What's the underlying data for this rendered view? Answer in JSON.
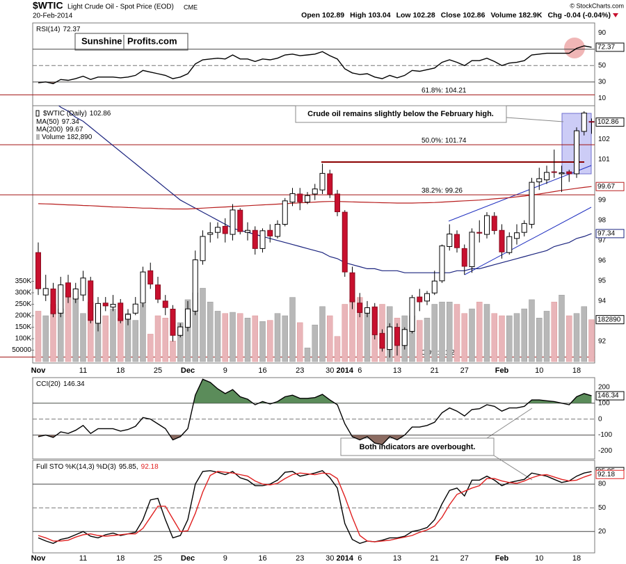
{
  "header": {
    "symbol": "$WTIC",
    "name": "Light Crude Oil - Spot Price (EOD)",
    "exchange": "CME",
    "date": "20-Feb-2014",
    "copyright": "© StockCharts.com",
    "quote": [
      {
        "label": "Open",
        "value": 102.89
      },
      {
        "label": "High",
        "value": 103.04
      },
      {
        "label": "Low",
        "value": 102.28
      },
      {
        "label": "Close",
        "value": 102.86
      },
      {
        "label": "Volume",
        "value": "182.9K"
      },
      {
        "label": "Chg",
        "value": "-0.04 (-0.04%)"
      }
    ],
    "logo": [
      "Sunshine",
      "Profits.com"
    ]
  },
  "chart_data": [
    {
      "type": "line",
      "title": "RSI(14)",
      "ylim": [
        1,
        102
      ],
      "yticks": [
        90,
        70,
        50,
        30,
        10
      ],
      "levels": [
        70,
        50,
        30
      ],
      "dashed_level": 50,
      "fills": [
        {
          "value": 30,
          "side": "below",
          "color": "#8b6b61"
        }
      ],
      "series": [
        {
          "color": "#000000",
          "values": [
            29,
            30,
            28,
            33,
            32,
            34,
            37,
            33,
            36,
            36,
            36,
            35,
            36,
            38,
            44,
            42,
            40,
            38,
            34,
            36,
            40,
            52,
            57,
            58,
            59,
            58,
            63,
            58,
            58,
            55,
            58,
            57,
            59,
            63,
            64,
            62,
            63,
            64,
            67,
            62,
            58,
            46,
            41,
            39,
            40,
            36,
            34,
            38,
            35,
            38,
            44,
            43,
            45,
            47,
            54,
            57,
            54,
            50,
            56,
            56,
            59,
            55,
            50,
            53,
            54,
            56,
            63,
            64,
            65,
            65,
            65,
            65,
            71,
            74,
            72.37
          ]
        }
      ]
    },
    {
      "type": "candlestick",
      "title": "$WTIC (Daily)",
      "categories": [
        "Nov",
        null,
        null,
        null,
        null,
        null,
        "11",
        null,
        null,
        null,
        null,
        "18",
        null,
        null,
        null,
        null,
        "25",
        null,
        null,
        null,
        "Dec",
        null,
        null,
        null,
        null,
        "9",
        null,
        null,
        null,
        null,
        "16",
        null,
        null,
        null,
        null,
        "23",
        null,
        null,
        null,
        "30",
        null,
        "2014",
        null,
        "6",
        null,
        null,
        null,
        null,
        "13",
        null,
        null,
        null,
        null,
        "21",
        null,
        null,
        null,
        "27",
        null,
        null,
        null,
        null,
        "Feb",
        null,
        null,
        null,
        null,
        "10",
        null,
        null,
        null,
        null,
        "18",
        null,
        null
      ],
      "open": [
        96.4,
        94.3,
        94.6,
        93.4,
        94.9,
        94.1,
        94.3,
        95.0,
        92.9,
        93.9,
        93.7,
        93.9,
        93.1,
        93.4,
        93.9,
        95.5,
        94.8,
        94.0,
        93.6,
        92.3,
        92.7,
        93.5,
        96.0,
        97.3,
        97.4,
        97.7,
        97.3,
        98.5,
        97.4,
        97.5,
        96.6,
        97.5,
        97.2,
        97.8,
        98.9,
        99.3,
        98.9,
        99.3,
        99.5,
        100.3,
        99.3,
        98.4,
        95.4,
        93.9,
        93.4,
        93.7,
        92.4,
        91.6,
        92.7,
        91.8,
        92.5,
        94.2,
        94.0,
        94.4,
        95.0,
        96.7,
        97.3,
        96.6,
        95.7,
        97.4,
        97.3,
        98.2,
        97.5,
        96.4,
        97.1,
        97.4,
        97.8,
        99.9,
        100.0,
        100.4,
        100.3,
        100.4,
        100.3,
        102.4,
        102.89
      ],
      "high": [
        96.9,
        95.3,
        94.9,
        95.2,
        95.3,
        94.9,
        95.5,
        95.2,
        94.2,
        94.2,
        94.3,
        94.1,
        93.6,
        94.2,
        95.7,
        95.9,
        95.2,
        94.3,
        93.8,
        92.9,
        94.0,
        96.5,
        97.5,
        97.9,
        97.9,
        98.1,
        98.8,
        98.6,
        97.9,
        97.7,
        97.6,
        97.8,
        98.0,
        99.1,
        99.6,
        99.6,
        99.4,
        99.8,
        100.8,
        100.5,
        99.5,
        98.5,
        95.7,
        94.4,
        94.0,
        93.9,
        92.6,
        92.9,
        92.9,
        92.7,
        94.3,
        94.6,
        94.5,
        95.5,
        96.8,
        97.8,
        97.5,
        96.8,
        97.6,
        98.0,
        98.4,
        98.4,
        97.8,
        97.4,
        97.8,
        98.0,
        100.1,
        100.6,
        100.7,
        101.5,
        100.7,
        100.5,
        102.6,
        103.4,
        103.04
      ],
      "low": [
        94.3,
        94.0,
        93.2,
        93.2,
        93.9,
        93.9,
        94.0,
        92.9,
        92.5,
        93.5,
        93.5,
        92.9,
        92.8,
        93.3,
        93.7,
        94.6,
        93.9,
        93.3,
        92.0,
        92.2,
        92.5,
        93.3,
        95.8,
        96.9,
        97.1,
        96.9,
        97.0,
        97.3,
        97.0,
        96.3,
        96.4,
        96.9,
        97.1,
        97.7,
        98.7,
        98.5,
        98.8,
        99.0,
        99.3,
        99.1,
        98.2,
        95.2,
        93.6,
        93.2,
        93.2,
        92.1,
        91.5,
        91.2,
        91.3,
        91.6,
        92.4,
        93.5,
        93.8,
        94.3,
        94.9,
        96.5,
        96.4,
        95.3,
        95.4,
        96.9,
        97.1,
        97.3,
        96.1,
        96.3,
        96.8,
        97.2,
        97.6,
        99.5,
        99.8,
        100.1,
        99.4,
        99.9,
        100.1,
        102.2,
        102.28
      ],
      "close": [
        94.61,
        94.62,
        93.37,
        94.8,
        94.2,
        94.6,
        95.14,
        93.04,
        93.88,
        93.76,
        93.84,
        93.03,
        93.34,
        93.85,
        95.44,
        94.84,
        94.09,
        93.68,
        92.3,
        92.72,
        93.61,
        96.04,
        97.2,
        97.38,
        97.65,
        97.34,
        98.51,
        97.44,
        97.5,
        96.6,
        97.48,
        97.22,
        97.8,
        98.96,
        99.32,
        98.91,
        99.22,
        99.55,
        100.32,
        99.29,
        98.42,
        95.44,
        93.96,
        93.43,
        93.67,
        92.33,
        91.66,
        92.72,
        91.8,
        92.59,
        94.17,
        93.96,
        94.37,
        94.99,
        96.73,
        97.32,
        96.64,
        95.72,
        97.41,
        97.36,
        98.23,
        97.49,
        96.43,
        97.19,
        97.38,
        97.84,
        99.88,
        100.06,
        100.37,
        100.37,
        100.35,
        100.3,
        102.43,
        103.31,
        102.86
      ],
      "up_color": "#ffffff",
      "down_color": "#c8102e",
      "ylim": [
        91,
        103.5
      ],
      "yticks": [
        92,
        94,
        95,
        96,
        97,
        98,
        99,
        101,
        102
      ],
      "y2lim": [
        0,
        1100000
      ],
      "y2ticks": [
        {
          "value": 350000,
          "label": "350K"
        },
        {
          "value": 300000,
          "label": "300K"
        },
        {
          "value": 250000,
          "label": "250K"
        },
        {
          "value": 200000,
          "label": "200K"
        },
        {
          "value": 150000,
          "label": "150K"
        },
        {
          "value": 100000,
          "label": "100K"
        },
        50000
      ],
      "series": [
        {
          "name": "MA(50)",
          "color": "#1a237e",
          "values": [
            104.3,
            104.1,
            103.9,
            103.6,
            103.4,
            103.1,
            102.9,
            102.6,
            102.3,
            102.0,
            101.7,
            101.4,
            101.1,
            100.8,
            100.5,
            100.2,
            99.9,
            99.6,
            99.3,
            99.0,
            98.8,
            98.6,
            98.4,
            98.2,
            98.0,
            97.8,
            97.6,
            97.5,
            97.4,
            97.3,
            97.2,
            97.1,
            97.0,
            96.9,
            96.8,
            96.7,
            96.6,
            96.5,
            96.4,
            96.2,
            96.1,
            95.9,
            95.8,
            95.7,
            95.6,
            95.6,
            95.5,
            95.5,
            95.5,
            95.4,
            95.4,
            95.4,
            95.4,
            95.4,
            95.4,
            95.4,
            95.5,
            95.5,
            95.6,
            95.6,
            95.7,
            95.8,
            95.9,
            96.0,
            96.1,
            96.2,
            96.3,
            96.4,
            96.5,
            96.7,
            96.8,
            96.9,
            97.1,
            97.2,
            97.34
          ]
        },
        {
          "name": "MA(200)",
          "color": "#b71c1c",
          "values": [
            98.82,
            98.81,
            98.8,
            98.78,
            98.76,
            98.75,
            98.73,
            98.72,
            98.7,
            98.68,
            98.66,
            98.65,
            98.63,
            98.62,
            98.6,
            98.6,
            98.58,
            98.57,
            98.56,
            98.56,
            98.56,
            98.58,
            98.6,
            98.62,
            98.64,
            98.66,
            98.68,
            98.7,
            98.72,
            98.74,
            98.76,
            98.78,
            98.8,
            98.82,
            98.84,
            98.86,
            98.88,
            98.9,
            98.92,
            98.93,
            98.93,
            98.92,
            98.91,
            98.9,
            98.89,
            98.88,
            98.87,
            98.86,
            98.85,
            98.85,
            98.85,
            98.86,
            98.87,
            98.88,
            98.9,
            98.92,
            98.94,
            98.96,
            98.98,
            99.0,
            99.03,
            99.06,
            99.09,
            99.12,
            99.16,
            99.2,
            99.25,
            99.3,
            99.36,
            99.42,
            99.48,
            99.53,
            99.58,
            99.63,
            99.67
          ]
        },
        {
          "name": "Volume 182,890",
          "type": "bar",
          "axis": "y2",
          "color": "#b8b8b8",
          "down_color": "#e9b5b9",
          "values": [
            220000,
            200000,
            250000,
            230000,
            300000,
            280000,
            210000,
            260000,
            240000,
            200000,
            230000,
            190000,
            210000,
            180000,
            250000,
            120000,
            200000,
            190000,
            90000,
            170000,
            270000,
            300000,
            320000,
            260000,
            220000,
            210000,
            215000,
            210000,
            190000,
            200000,
            175000,
            180000,
            210000,
            200000,
            280000,
            170000,
            60000,
            160000,
            240000,
            200000,
            110000,
            250000,
            270000,
            280000,
            210000,
            240000,
            250000,
            240000,
            190000,
            200000,
            200000,
            180000,
            190000,
            250000,
            260000,
            260000,
            250000,
            210000,
            230000,
            260000,
            250000,
            210000,
            200000,
            200000,
            210000,
            230000,
            270000,
            190000,
            220000,
            260000,
            290000,
            200000,
            210000,
            240000,
            182890
          ]
        }
      ],
      "fib_levels": [
        {
          "value": 104.21,
          "label": "61.8%: 104.21"
        },
        {
          "value": 101.74,
          "label": "50.0%: 101.74"
        },
        {
          "value": 99.26,
          "label": "38.2%: 99.26"
        },
        {
          "value": 91.23,
          "label": "0.0%: 91.23"
        }
      ],
      "fib_color": "#a01010",
      "annotations": [
        "Crude oil remains slightly below the February high."
      ]
    },
    {
      "type": "line",
      "title": "CCI(20)",
      "ylim": [
        -250,
        260
      ],
      "yticks": [
        200,
        100,
        0,
        -100,
        -200
      ],
      "levels": [
        100,
        0,
        -100
      ],
      "dashed_level": 0,
      "fills": [
        {
          "value": 100,
          "side": "above",
          "color": "#5b8c5a"
        },
        {
          "value": -100,
          "side": "below",
          "color": "#8b6b61"
        }
      ],
      "series": [
        {
          "color": "#000000",
          "values": [
            -110,
            -100,
            -115,
            -80,
            -90,
            -70,
            -40,
            -90,
            -60,
            -60,
            -60,
            -75,
            -65,
            -45,
            10,
            0,
            -30,
            -60,
            -130,
            -110,
            -60,
            150,
            250,
            230,
            190,
            160,
            185,
            140,
            125,
            90,
            110,
            95,
            110,
            140,
            150,
            130,
            130,
            135,
            155,
            120,
            90,
            -30,
            -110,
            -130,
            -110,
            -150,
            -160,
            -110,
            -130,
            -100,
            -50,
            -50,
            -40,
            -20,
            40,
            70,
            50,
            20,
            60,
            65,
            90,
            80,
            50,
            70,
            70,
            80,
            120,
            120,
            115,
            110,
            100,
            90,
            140,
            160,
            146.34
          ]
        }
      ],
      "annotations": [
        "Both indicators are overbought."
      ]
    },
    {
      "type": "line",
      "title": "Full STO %K(14,3) %D(3)",
      "separator": ",",
      "ylim": [
        -7,
        110
      ],
      "yticks": [
        80,
        50,
        20
      ],
      "levels": [
        80,
        50,
        20
      ],
      "dashed_level": 50,
      "categories": [
        "Nov",
        null,
        null,
        null,
        null,
        null,
        "11",
        null,
        null,
        null,
        null,
        "18",
        null,
        null,
        null,
        null,
        "25",
        null,
        null,
        null,
        "Dec",
        null,
        null,
        null,
        null,
        "9",
        null,
        null,
        null,
        null,
        "16",
        null,
        null,
        null,
        null,
        "23",
        null,
        null,
        null,
        "30",
        null,
        "2014",
        null,
        "6",
        null,
        null,
        null,
        null,
        "13",
        null,
        null,
        null,
        null,
        "21",
        null,
        null,
        null,
        "27",
        null,
        null,
        null,
        null,
        "Feb",
        null,
        null,
        null,
        null,
        "10",
        null,
        null,
        null,
        null,
        "18",
        null,
        null
      ],
      "series": [
        {
          "color": "#000000",
          "values": [
            12,
            8,
            5,
            10,
            12,
            16,
            20,
            14,
            12,
            16,
            18,
            15,
            17,
            19,
            35,
            60,
            62,
            35,
            12,
            15,
            35,
            80,
            96,
            97,
            95,
            92,
            96,
            88,
            85,
            78,
            78,
            80,
            85,
            95,
            96,
            90,
            92,
            94,
            97,
            88,
            75,
            30,
            10,
            5,
            8,
            7,
            9,
            12,
            12,
            14,
            20,
            22,
            25,
            35,
            55,
            72,
            75,
            65,
            85,
            85,
            90,
            85,
            78,
            82,
            84,
            86,
            94,
            92,
            90,
            86,
            82,
            84,
            90,
            94,
            95.85
          ]
        },
        {
          "color": "#e02020",
          "values": [
            15,
            12,
            8,
            8,
            9,
            13,
            16,
            17,
            15,
            14,
            15,
            16,
            17,
            17,
            24,
            38,
            52,
            52,
            36,
            20,
            21,
            43,
            70,
            91,
            96,
            95,
            94,
            92,
            90,
            84,
            80,
            79,
            81,
            87,
            92,
            94,
            93,
            92,
            94,
            93,
            87,
            64,
            38,
            15,
            8,
            7,
            8,
            9,
            11,
            13,
            15,
            19,
            22,
            27,
            38,
            54,
            67,
            71,
            75,
            78,
            87,
            87,
            84,
            82,
            81,
            84,
            88,
            91,
            92,
            89,
            86,
            84,
            85,
            89,
            92.18
          ]
        }
      ]
    }
  ]
}
